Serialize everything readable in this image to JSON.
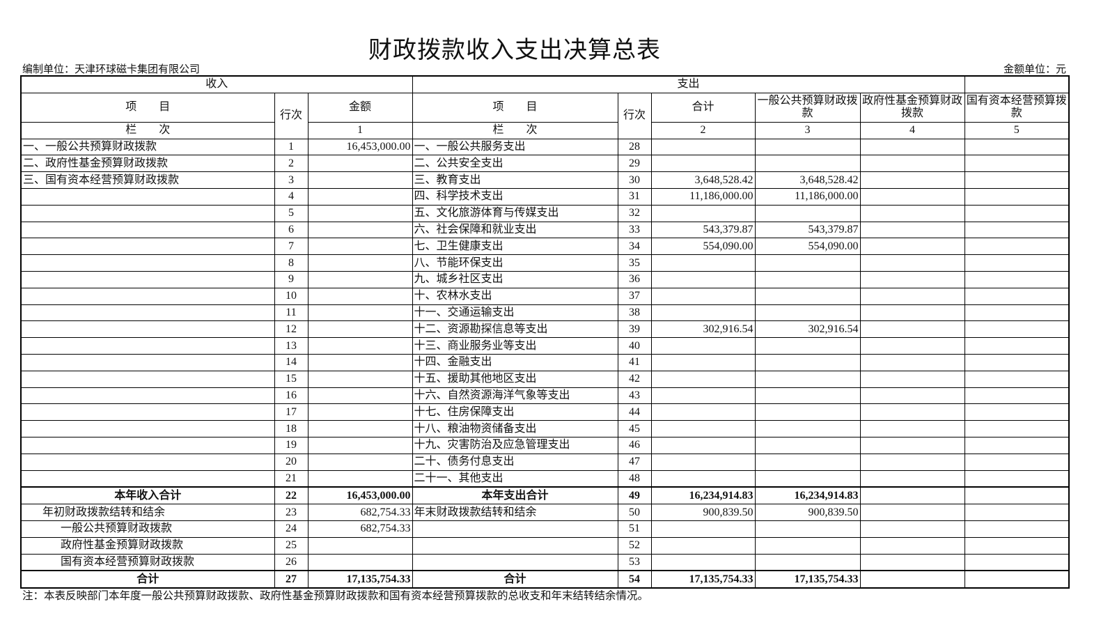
{
  "title": "财政拨款收入支出决算总表",
  "org_label": "编制单位：天津环球磁卡集团有限公司",
  "unit_label": "金额单位：元",
  "header": {
    "income": "收入",
    "expense": "支出",
    "item": "项　　目",
    "row_no": "行次",
    "amount": "金额",
    "total": "合计",
    "general": "一般公共预算财政拨款",
    "fund": "政府性基金预算财政拨款",
    "state": "国有资本经营预算拨款",
    "col_label": "栏　　次",
    "col1": "1",
    "col2": "2",
    "col3": "3",
    "col4": "4",
    "col5": "5"
  },
  "rows": [
    [
      "一、一般公共预算财政拨款",
      "1",
      "16,453,000.00",
      "一、一般公共服务支出",
      "28",
      "",
      "",
      "",
      ""
    ],
    [
      "二、政府性基金预算财政拨款",
      "2",
      "",
      "二、公共安全支出",
      "29",
      "",
      "",
      "",
      ""
    ],
    [
      "三、国有资本经营预算财政拨款",
      "3",
      "",
      "三、教育支出",
      "30",
      "3,648,528.42",
      "3,648,528.42",
      "",
      ""
    ],
    [
      "",
      "4",
      "",
      "四、科学技术支出",
      "31",
      "11,186,000.00",
      "11,186,000.00",
      "",
      ""
    ],
    [
      "",
      "5",
      "",
      "五、文化旅游体育与传媒支出",
      "32",
      "",
      "",
      "",
      ""
    ],
    [
      "",
      "6",
      "",
      "六、社会保障和就业支出",
      "33",
      "543,379.87",
      "543,379.87",
      "",
      ""
    ],
    [
      "",
      "7",
      "",
      "七、卫生健康支出",
      "34",
      "554,090.00",
      "554,090.00",
      "",
      ""
    ],
    [
      "",
      "8",
      "",
      "八、节能环保支出",
      "35",
      "",
      "",
      "",
      ""
    ],
    [
      "",
      "9",
      "",
      "九、城乡社区支出",
      "36",
      "",
      "",
      "",
      ""
    ],
    [
      "",
      "10",
      "",
      "十、农林水支出",
      "37",
      "",
      "",
      "",
      ""
    ],
    [
      "",
      "11",
      "",
      "十一、交通运输支出",
      "38",
      "",
      "",
      "",
      ""
    ],
    [
      "",
      "12",
      "",
      "十二、资源勘探信息等支出",
      "39",
      "302,916.54",
      "302,916.54",
      "",
      ""
    ],
    [
      "",
      "13",
      "",
      "十三、商业服务业等支出",
      "40",
      "",
      "",
      "",
      ""
    ],
    [
      "",
      "14",
      "",
      "十四、金融支出",
      "41",
      "",
      "",
      "",
      ""
    ],
    [
      "",
      "15",
      "",
      "十五、援助其他地区支出",
      "42",
      "",
      "",
      "",
      ""
    ],
    [
      "",
      "16",
      "",
      "十六、自然资源海洋气象等支出",
      "43",
      "",
      "",
      "",
      ""
    ],
    [
      "",
      "17",
      "",
      "十七、住房保障支出",
      "44",
      "",
      "",
      "",
      ""
    ],
    [
      "",
      "18",
      "",
      "十八、粮油物资储备支出",
      "45",
      "",
      "",
      "",
      ""
    ],
    [
      "",
      "19",
      "",
      "十九、灾害防治及应急管理支出",
      "46",
      "",
      "",
      "",
      ""
    ],
    [
      "",
      "20",
      "",
      "二十、债务付息支出",
      "47",
      "",
      "",
      "",
      ""
    ],
    [
      "",
      "21",
      "",
      "二十一、其他支出",
      "48",
      "",
      "",
      "",
      ""
    ],
    [
      "本年收入合计",
      "22",
      "16,453,000.00",
      "本年支出合计",
      "49",
      "16,234,914.83",
      "16,234,914.83",
      "",
      ""
    ],
    [
      "年初财政拨款结转和结余",
      "23",
      "682,754.33",
      "年末财政拨款结转和结余",
      "50",
      "900,839.50",
      "900,839.50",
      "",
      ""
    ],
    [
      "一般公共预算财政拨款",
      "24",
      "682,754.33",
      "",
      "51",
      "",
      "",
      "",
      ""
    ],
    [
      "政府性基金预算财政拨款",
      "25",
      "",
      "",
      "52",
      "",
      "",
      "",
      ""
    ],
    [
      "国有资本经营预算财政拨款",
      "26",
      "",
      "",
      "53",
      "",
      "",
      "",
      ""
    ],
    [
      "合计",
      "27",
      "17,135,754.33",
      "合计",
      "54",
      "17,135,754.33",
      "17,135,754.33",
      "",
      ""
    ]
  ],
  "note": "注：本表反映部门本年度一般公共预算财政拨款、政府性基金预算财政拨款和国有资本经营预算拨款的总收支和年末结转结余情况。"
}
